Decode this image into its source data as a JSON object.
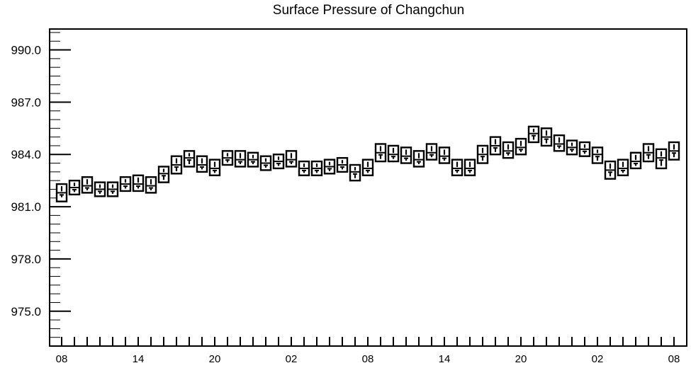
{
  "chart_data": {
    "type": "box",
    "title": "Surface Pressure of Changchun",
    "xlabel": "",
    "ylabel": "",
    "ylim": [
      973.0,
      991.2
    ],
    "yticks": [
      975.0,
      978.0,
      981.0,
      984.0,
      987.0,
      990.0
    ],
    "ytick_labels": [
      "975.0",
      "978.0",
      "981.0",
      "984.0",
      "987.0",
      "990.0"
    ],
    "ytick_minor_step": 0.5,
    "x_time_steps_hours": 48,
    "x_step_hours": 1,
    "xticks_hours": [
      0,
      6,
      12,
      18,
      24,
      30,
      36,
      42,
      48
    ],
    "xtick_labels": [
      "08",
      "14",
      "20",
      "02",
      "08",
      "14",
      "20",
      "02",
      "08"
    ],
    "grid": false,
    "series": [
      {
        "boxes": [
          {
            "x": 0,
            "low": 981.3,
            "q1": 981.5,
            "median": 981.8,
            "q3": 982.3,
            "high": 982.3
          },
          {
            "x": 1,
            "low": 981.7,
            "q1": 981.8,
            "median": 982.1,
            "q3": 982.5,
            "high": 982.5
          },
          {
            "x": 2,
            "low": 981.8,
            "q1": 981.9,
            "median": 982.2,
            "q3": 982.7,
            "high": 982.7
          },
          {
            "x": 3,
            "low": 981.6,
            "q1": 981.7,
            "median": 982.0,
            "q3": 982.4,
            "high": 982.4
          },
          {
            "x": 4,
            "low": 981.6,
            "q1": 981.7,
            "median": 982.0,
            "q3": 982.4,
            "high": 982.4
          },
          {
            "x": 5,
            "low": 981.9,
            "q1": 982.0,
            "median": 982.3,
            "q3": 982.7,
            "high": 982.7
          },
          {
            "x": 6,
            "low": 981.9,
            "q1": 982.0,
            "median": 982.3,
            "q3": 982.8,
            "high": 982.8
          },
          {
            "x": 7,
            "low": 981.8,
            "q1": 981.9,
            "median": 982.2,
            "q3": 982.7,
            "high": 982.7
          },
          {
            "x": 8,
            "low": 982.4,
            "q1": 982.5,
            "median": 982.9,
            "q3": 983.3,
            "high": 983.3
          },
          {
            "x": 9,
            "low": 982.9,
            "q1": 983.0,
            "median": 983.4,
            "q3": 983.9,
            "high": 983.9
          },
          {
            "x": 10,
            "low": 983.3,
            "q1": 983.4,
            "median": 983.8,
            "q3": 984.2,
            "high": 984.2
          },
          {
            "x": 11,
            "low": 983.0,
            "q1": 983.1,
            "median": 983.4,
            "q3": 983.9,
            "high": 983.9
          },
          {
            "x": 12,
            "low": 982.8,
            "q1": 982.9,
            "median": 983.2,
            "q3": 983.7,
            "high": 983.7
          },
          {
            "x": 13,
            "low": 983.4,
            "q1": 983.5,
            "median": 983.8,
            "q3": 984.2,
            "high": 984.2
          },
          {
            "x": 14,
            "low": 983.3,
            "q1": 983.4,
            "median": 983.7,
            "q3": 984.2,
            "high": 984.2
          },
          {
            "x": 15,
            "low": 983.3,
            "q1": 983.4,
            "median": 983.7,
            "q3": 984.1,
            "high": 984.1
          },
          {
            "x": 16,
            "low": 983.1,
            "q1": 983.2,
            "median": 983.5,
            "q3": 983.9,
            "high": 983.9
          },
          {
            "x": 17,
            "low": 983.2,
            "q1": 983.3,
            "median": 983.6,
            "q3": 984.0,
            "high": 984.0
          },
          {
            "x": 18,
            "low": 983.3,
            "q1": 983.4,
            "median": 983.7,
            "q3": 984.2,
            "high": 984.2
          },
          {
            "x": 19,
            "low": 982.8,
            "q1": 982.9,
            "median": 983.2,
            "q3": 983.6,
            "high": 983.6
          },
          {
            "x": 20,
            "low": 982.8,
            "q1": 982.9,
            "median": 983.2,
            "q3": 983.6,
            "high": 983.6
          },
          {
            "x": 21,
            "low": 982.9,
            "q1": 983.0,
            "median": 983.3,
            "q3": 983.7,
            "high": 983.7
          },
          {
            "x": 22,
            "low": 983.0,
            "q1": 983.1,
            "median": 983.4,
            "q3": 983.8,
            "high": 983.8
          },
          {
            "x": 23,
            "low": 982.5,
            "q1": 982.6,
            "median": 983.0,
            "q3": 983.4,
            "high": 983.4
          },
          {
            "x": 24,
            "low": 982.8,
            "q1": 982.9,
            "median": 983.2,
            "q3": 983.7,
            "high": 983.7
          },
          {
            "x": 25,
            "low": 983.6,
            "q1": 983.7,
            "median": 984.1,
            "q3": 984.6,
            "high": 984.6
          },
          {
            "x": 26,
            "low": 983.6,
            "q1": 983.7,
            "median": 984.0,
            "q3": 984.5,
            "high": 984.5
          },
          {
            "x": 27,
            "low": 983.5,
            "q1": 983.6,
            "median": 983.9,
            "q3": 984.4,
            "high": 984.4
          },
          {
            "x": 28,
            "low": 983.3,
            "q1": 983.4,
            "median": 983.7,
            "q3": 984.2,
            "high": 984.2
          },
          {
            "x": 29,
            "low": 983.7,
            "q1": 983.8,
            "median": 984.1,
            "q3": 984.6,
            "high": 984.6
          },
          {
            "x": 30,
            "low": 983.5,
            "q1": 983.6,
            "median": 983.9,
            "q3": 984.4,
            "high": 984.4
          },
          {
            "x": 31,
            "low": 982.8,
            "q1": 982.9,
            "median": 983.2,
            "q3": 983.7,
            "high": 983.7
          },
          {
            "x": 32,
            "low": 982.8,
            "q1": 982.9,
            "median": 983.2,
            "q3": 983.7,
            "high": 983.7
          },
          {
            "x": 33,
            "low": 983.5,
            "q1": 983.6,
            "median": 984.0,
            "q3": 984.5,
            "high": 984.5
          },
          {
            "x": 34,
            "low": 984.0,
            "q1": 984.1,
            "median": 984.5,
            "q3": 985.0,
            "high": 985.0
          },
          {
            "x": 35,
            "low": 983.8,
            "q1": 983.9,
            "median": 984.2,
            "q3": 984.7,
            "high": 984.7
          },
          {
            "x": 36,
            "low": 984.0,
            "q1": 984.1,
            "median": 984.4,
            "q3": 984.9,
            "high": 984.9
          },
          {
            "x": 37,
            "low": 984.7,
            "q1": 984.8,
            "median": 985.2,
            "q3": 985.6,
            "high": 985.6
          },
          {
            "x": 38,
            "low": 984.5,
            "q1": 984.6,
            "median": 985.0,
            "q3": 985.5,
            "high": 985.5
          },
          {
            "x": 39,
            "low": 984.2,
            "q1": 984.3,
            "median": 984.6,
            "q3": 985.1,
            "high": 985.1
          },
          {
            "x": 40,
            "low": 984.0,
            "q1": 984.1,
            "median": 984.4,
            "q3": 984.8,
            "high": 984.8
          },
          {
            "x": 41,
            "low": 983.9,
            "q1": 984.0,
            "median": 984.3,
            "q3": 984.7,
            "high": 984.7
          },
          {
            "x": 42,
            "low": 983.5,
            "q1": 983.6,
            "median": 984.0,
            "q3": 984.4,
            "high": 984.4
          },
          {
            "x": 43,
            "low": 982.6,
            "q1": 982.7,
            "median": 983.1,
            "q3": 983.6,
            "high": 983.6
          },
          {
            "x": 44,
            "low": 982.8,
            "q1": 982.9,
            "median": 983.2,
            "q3": 983.7,
            "high": 983.7
          },
          {
            "x": 45,
            "low": 983.2,
            "q1": 983.3,
            "median": 983.6,
            "q3": 984.1,
            "high": 984.1
          },
          {
            "x": 46,
            "low": 983.6,
            "q1": 983.7,
            "median": 984.1,
            "q3": 984.6,
            "high": 984.6
          },
          {
            "x": 47,
            "low": 983.2,
            "q1": 983.3,
            "median": 983.8,
            "q3": 984.3,
            "high": 984.3
          },
          {
            "x": 48,
            "low": 983.7,
            "q1": 983.8,
            "median": 984.2,
            "q3": 984.7,
            "high": 984.7
          }
        ]
      }
    ]
  }
}
